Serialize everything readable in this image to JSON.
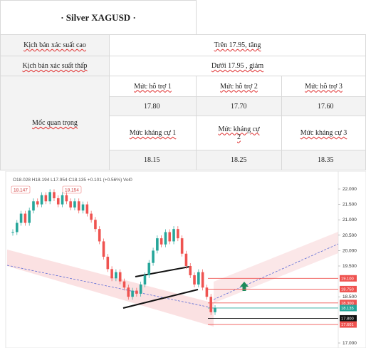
{
  "title": "· Silver  XAGUSD  ·",
  "table": {
    "scenarios": [
      {
        "label": "Kịch bản xác suất cao",
        "value": "Trên 17.95, tăng"
      },
      {
        "label": "Kịch bản xác suất thấp",
        "value": "Dưới  17.95 , giảm"
      }
    ],
    "key_label": "Mốc quan trọng",
    "support": [
      {
        "label": "Mức hỗ trợ 1",
        "value": "17.80"
      },
      {
        "label": "Mức hỗ trợ 2",
        "value": "17.70"
      },
      {
        "label": "Mức hỗ trợ 3",
        "value": "17.60"
      }
    ],
    "resistance": [
      {
        "label": "Mức kháng cự 1",
        "value": "18.15"
      },
      {
        "label": "Mức kháng cự 2",
        "value": "18.25"
      },
      {
        "label": "Mức kháng cự 3",
        "value": "18.35"
      }
    ]
  },
  "chart": {
    "type": "candlestick",
    "header": "O18.028 H18.194 L17.954 C18.135 +0.101 (+0.56%) Vol0",
    "overlay_labels": [
      "18.147",
      "18.154"
    ],
    "ylim": [
      16.838,
      22.579
    ],
    "yticks": [
      {
        "value": 22,
        "label": "22.000"
      },
      {
        "value": 21.5,
        "label": "21.500"
      },
      {
        "value": 21,
        "label": "21.000"
      },
      {
        "value": 20.5,
        "label": "20.500"
      },
      {
        "value": 20,
        "label": "20.000"
      },
      {
        "value": 19.5,
        "label": "19.500"
      },
      {
        "value": 18.5,
        "label": "18.500"
      },
      {
        "value": 17,
        "label": "17.000"
      }
    ],
    "price_tags": [
      {
        "value": 19.1,
        "label": "19.100",
        "color": "#ef5350"
      },
      {
        "value": 18.75,
        "label": "18.750",
        "color": "#ef5350"
      },
      {
        "value": 18.3,
        "label": "18.300",
        "color": "#ef5350"
      },
      {
        "value": 18.135,
        "label": "18.135",
        "color": "#26a69a"
      },
      {
        "value": 17.8,
        "label": "17.800",
        "color": "#111111"
      },
      {
        "value": 17.601,
        "label": "17.601",
        "color": "#ef5350"
      }
    ],
    "up_color": "#26a69a",
    "down_color": "#ef5350",
    "closes": [
      20.6,
      20.9,
      21.2,
      20.9,
      21.3,
      21.6,
      21.5,
      21.8,
      21.6,
      21.9,
      21.7,
      21.5,
      21.8,
      21.6,
      21.4,
      21.6,
      21.3,
      21.5,
      21.2,
      21.0,
      20.7,
      20.3,
      19.8,
      19.4,
      19.1,
      19.3,
      19.0,
      18.8,
      18.5,
      18.7,
      18.6,
      18.9,
      19.2,
      19.6,
      20.0,
      20.4,
      20.2,
      20.6,
      20.3,
      20.7,
      20.4,
      19.9,
      19.5,
      19.2,
      18.9,
      19.3,
      18.8,
      18.5,
      18.0,
      18.135
    ]
  }
}
